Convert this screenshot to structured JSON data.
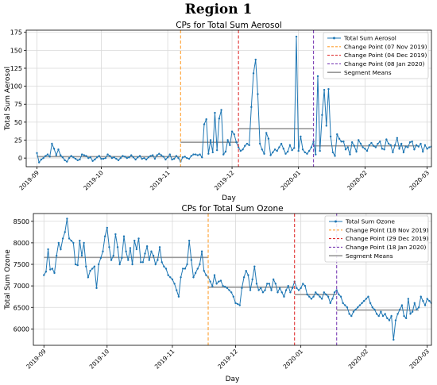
{
  "figure": {
    "title": "Region 1"
  },
  "chart_data": [
    {
      "type": "line",
      "title": "CPs for Total Sum Aerosol",
      "xlabel": "Day",
      "ylabel": "Total Sum Aerosol",
      "x_start": "2019-09-01",
      "x_end": "2020-02-26",
      "xlim": [
        "2019-08-27",
        "2020-03-03"
      ],
      "ylim": [
        -12,
        178
      ],
      "yticks": [
        0,
        25,
        50,
        75,
        100,
        125,
        150,
        175
      ],
      "xticks": [
        "2019-09",
        "2019-10",
        "2019-11",
        "2019-12",
        "2020-01",
        "2020-02",
        "2020-03"
      ],
      "grid": true,
      "legend_position": "top-right",
      "series": [
        {
          "name": "Total Sum Aerosol",
          "color": "#1f77b4",
          "values": [
            7,
            -6,
            -2,
            0,
            3,
            5,
            2,
            20,
            13,
            4,
            12,
            4,
            1,
            -3,
            -5,
            0,
            3,
            1,
            -1,
            -3,
            -2,
            5,
            4,
            3,
            0,
            1,
            -4,
            -2,
            1,
            3,
            -1,
            -1,
            0,
            5,
            3,
            0,
            1,
            -1,
            -3,
            0,
            3,
            2,
            0,
            1,
            4,
            1,
            -2,
            1,
            3,
            -1,
            0,
            -2,
            1,
            3,
            4,
            -1,
            4,
            6,
            4,
            2,
            -2,
            1,
            5,
            -2,
            -1,
            3,
            0,
            -5,
            1,
            2,
            0,
            -1,
            3,
            5,
            5,
            4,
            5,
            1,
            47,
            54,
            6,
            25,
            8,
            63,
            11,
            55,
            67,
            5,
            9,
            25,
            18,
            37,
            33,
            22,
            15,
            10,
            12,
            17,
            20,
            18,
            71,
            118,
            137,
            89,
            20,
            12,
            6,
            35,
            27,
            4,
            8,
            12,
            10,
            15,
            20,
            13,
            6,
            9,
            18,
            11,
            14,
            169,
            10,
            30,
            12,
            8,
            6,
            10,
            15,
            23,
            5,
            114,
            10,
            60,
            95,
            45,
            96,
            30,
            8,
            3,
            33,
            27,
            23,
            23,
            12,
            15,
            5,
            22,
            17,
            9,
            25,
            20,
            15,
            13,
            10,
            18,
            21,
            17,
            15,
            20,
            23,
            13,
            12,
            26,
            20,
            18,
            8,
            18,
            28,
            13,
            20,
            8,
            16,
            15,
            22,
            23,
            12,
            18,
            16,
            20,
            9,
            18,
            13,
            15,
            16,
            10,
            12,
            13,
            12,
            18,
            14,
            11,
            13,
            14,
            20
          ]
        }
      ],
      "change_points": [
        {
          "label": "Change Point (07 Nov 2019)",
          "date": "2019-11-07",
          "color": "#ff9f2e"
        },
        {
          "label": "Change Point (04 Dec 2019)",
          "date": "2019-12-04",
          "color": "#e03030"
        },
        {
          "label": "Change Point (08 Jan 2020)",
          "date": "2020-01-08",
          "color": "#7b3fb5"
        }
      ],
      "segment_means": {
        "label": "Segment Means",
        "color": "#999999",
        "segments": [
          {
            "start": "2019-09-01",
            "end": "2019-11-07",
            "value": 2
          },
          {
            "start": "2019-11-07",
            "end": "2019-12-04",
            "value": 22
          },
          {
            "start": "2019-12-04",
            "end": "2020-01-08",
            "value": 41
          },
          {
            "start": "2020-01-08",
            "end": "2020-02-26",
            "value": 17
          }
        ]
      }
    },
    {
      "type": "line",
      "title": "CPs for Total Sum Ozone",
      "xlabel": "Day",
      "ylabel": "Total Sum Ozone",
      "x_start": "2019-09-01",
      "x_end": "2020-02-26",
      "xlim": [
        "2019-08-27",
        "2020-03-03"
      ],
      "ylim": [
        5620,
        8680
      ],
      "yticks": [
        6000,
        6500,
        7000,
        7500,
        8000,
        8500
      ],
      "xticks": [
        "2019-09",
        "2019-10",
        "2019-11",
        "2019-12",
        "2020-01",
        "2020-02",
        "2020-03"
      ],
      "grid": true,
      "legend_position": "top-right",
      "series": [
        {
          "name": "Total Sum Ozone",
          "color": "#1f77b4",
          "values": [
            7250,
            7330,
            7850,
            7380,
            7400,
            7300,
            7700,
            8000,
            7850,
            8100,
            8250,
            8560,
            8100,
            8050,
            8000,
            7500,
            7480,
            8050,
            7700,
            8000,
            7450,
            7200,
            7350,
            7400,
            7450,
            6950,
            7500,
            7650,
            7800,
            8150,
            8350,
            7900,
            7600,
            7700,
            8200,
            7900,
            7500,
            7650,
            8150,
            7800,
            7600,
            7880,
            7500,
            8050,
            7850,
            8100,
            7550,
            7550,
            7750,
            7920,
            7600,
            7800,
            7700,
            7500,
            7600,
            7900,
            7550,
            7450,
            7400,
            7250,
            7200,
            7150,
            7050,
            6900,
            6750,
            7200,
            7400,
            7400,
            7500,
            8050,
            7600,
            7200,
            7300,
            7400,
            7500,
            7800,
            7350,
            7250,
            7200,
            7100,
            6990,
            7250,
            7050,
            7100,
            7120,
            7000,
            6980,
            6950,
            6900,
            6850,
            6750,
            6600,
            6580,
            6550,
            6950,
            7200,
            7350,
            7250,
            6900,
            7150,
            7450,
            7050,
            6900,
            6950,
            6850,
            6900,
            7050,
            7050,
            6900,
            7150,
            7050,
            6850,
            6950,
            6850,
            6750,
            6900,
            7000,
            6850,
            6950,
            7100,
            6950,
            6900,
            6950,
            7050,
            7000,
            6800,
            6750,
            6700,
            6750,
            6850,
            6800,
            6750,
            6700,
            6850,
            6800,
            6750,
            6600,
            6700,
            6850,
            6900,
            6800,
            6750,
            6600,
            6550,
            6500,
            6350,
            6300,
            6400,
            6450,
            6500,
            6550,
            6600,
            6650,
            6700,
            6750,
            6600,
            6500,
            6450,
            6350,
            6300,
            6400,
            6300,
            6350,
            6250,
            6200,
            6300,
            5750,
            6200,
            6350,
            6450,
            6550,
            6300,
            6250,
            6700,
            6350,
            6400,
            6600,
            6450,
            6500,
            6750,
            6650,
            6550,
            6700,
            6650,
            6600,
            6050
          ]
        }
      ],
      "change_points": [
        {
          "label": "Change Point (18 Nov 2019)",
          "date": "2019-11-18",
          "color": "#ff9f2e"
        },
        {
          "label": "Change Point (29 Dec 2019)",
          "date": "2019-12-29",
          "color": "#e03030"
        },
        {
          "label": "Change Point (18 Jan 2020)",
          "date": "2020-01-18",
          "color": "#7b3fb5"
        }
      ],
      "segment_means": {
        "label": "Segment Means",
        "color": "#999999",
        "segments": [
          {
            "start": "2019-09-01",
            "end": "2019-11-18",
            "value": 7660
          },
          {
            "start": "2019-11-18",
            "end": "2019-12-29",
            "value": 6970
          },
          {
            "start": "2019-12-29",
            "end": "2020-01-18",
            "value": 6800
          },
          {
            "start": "2020-01-18",
            "end": "2020-02-26",
            "value": 6440
          }
        ]
      }
    }
  ]
}
